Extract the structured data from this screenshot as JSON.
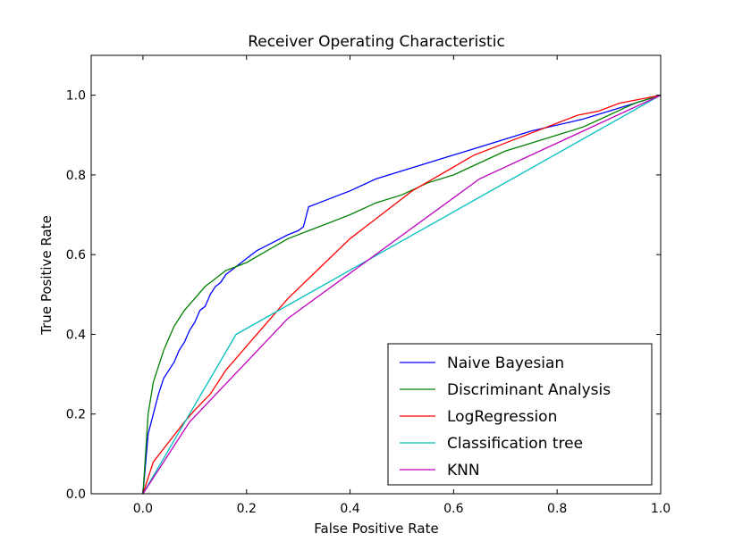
{
  "chart_data": {
    "type": "line",
    "title": "Receiver Operating Characteristic",
    "xlabel": "False Positive Rate",
    "ylabel": "True Positive Rate",
    "xlim": [
      -0.1,
      1.0
    ],
    "ylim": [
      0.0,
      1.1
    ],
    "xticks": [
      "0.0",
      "0.2",
      "0.4",
      "0.6",
      "0.8",
      "1.0"
    ],
    "yticks": [
      "0.0",
      "0.2",
      "0.4",
      "0.6",
      "0.8",
      "1.0"
    ],
    "grid": false,
    "legend_position": "lower-right",
    "series": [
      {
        "name": "Naive Bayesian",
        "color": "#0000ff",
        "x": [
          0.0,
          0.01,
          0.02,
          0.03,
          0.04,
          0.05,
          0.06,
          0.07,
          0.08,
          0.09,
          0.1,
          0.11,
          0.12,
          0.13,
          0.14,
          0.15,
          0.16,
          0.18,
          0.2,
          0.22,
          0.25,
          0.28,
          0.3,
          0.31,
          0.32,
          0.34,
          0.36,
          0.38,
          0.4,
          0.45,
          0.55,
          0.65,
          0.75,
          0.85,
          0.95,
          1.0
        ],
        "y": [
          0.0,
          0.15,
          0.2,
          0.25,
          0.29,
          0.31,
          0.33,
          0.36,
          0.38,
          0.41,
          0.43,
          0.46,
          0.47,
          0.5,
          0.52,
          0.53,
          0.55,
          0.57,
          0.59,
          0.61,
          0.63,
          0.65,
          0.66,
          0.67,
          0.72,
          0.73,
          0.74,
          0.75,
          0.76,
          0.79,
          0.83,
          0.87,
          0.91,
          0.94,
          0.98,
          1.0
        ]
      },
      {
        "name": "Discriminant Analysis",
        "color": "#008000",
        "x": [
          0.0,
          0.005,
          0.01,
          0.02,
          0.03,
          0.04,
          0.05,
          0.06,
          0.07,
          0.08,
          0.1,
          0.12,
          0.14,
          0.16,
          0.18,
          0.2,
          0.24,
          0.28,
          0.32,
          0.36,
          0.4,
          0.45,
          0.5,
          0.55,
          0.6,
          0.65,
          0.7,
          0.75,
          0.8,
          0.85,
          0.9,
          0.95,
          1.0
        ],
        "y": [
          0.0,
          0.1,
          0.2,
          0.28,
          0.32,
          0.36,
          0.39,
          0.42,
          0.44,
          0.46,
          0.49,
          0.52,
          0.54,
          0.56,
          0.57,
          0.58,
          0.61,
          0.64,
          0.66,
          0.68,
          0.7,
          0.73,
          0.75,
          0.78,
          0.8,
          0.83,
          0.86,
          0.88,
          0.9,
          0.92,
          0.95,
          0.98,
          1.0
        ]
      },
      {
        "name": "LogRegression",
        "color": "#ff0000",
        "x": [
          0.0,
          0.02,
          0.05,
          0.08,
          0.1,
          0.13,
          0.16,
          0.2,
          0.24,
          0.28,
          0.32,
          0.36,
          0.4,
          0.44,
          0.48,
          0.52,
          0.56,
          0.6,
          0.64,
          0.68,
          0.72,
          0.76,
          0.8,
          0.84,
          0.88,
          0.92,
          0.96,
          1.0
        ],
        "y": [
          0.0,
          0.08,
          0.13,
          0.18,
          0.21,
          0.25,
          0.31,
          0.37,
          0.43,
          0.49,
          0.54,
          0.59,
          0.64,
          0.68,
          0.72,
          0.76,
          0.79,
          0.82,
          0.85,
          0.87,
          0.89,
          0.91,
          0.93,
          0.95,
          0.96,
          0.98,
          0.99,
          1.0
        ]
      },
      {
        "name": "Classification tree",
        "color": "#00bfbf",
        "x": [
          0.0,
          0.18,
          1.0
        ],
        "y": [
          0.0,
          0.4,
          1.0
        ]
      },
      {
        "name": "KNN",
        "color": "#bf00bf",
        "x": [
          0.0,
          0.09,
          0.28,
          0.65,
          1.0
        ],
        "y": [
          0.0,
          0.18,
          0.44,
          0.79,
          1.0
        ]
      }
    ]
  }
}
